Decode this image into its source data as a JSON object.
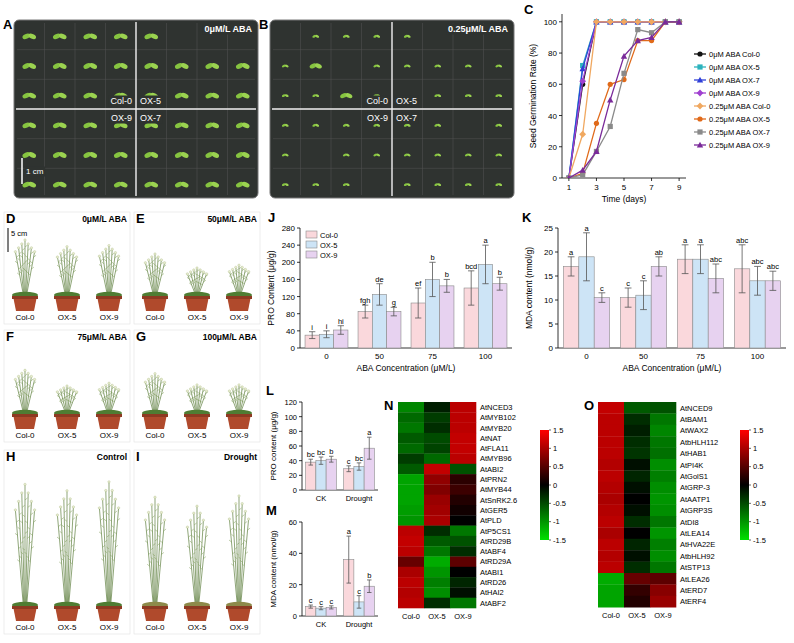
{
  "chart_data": [
    {
      "panel": "C",
      "type": "line",
      "x_label": "Time (days)",
      "y_label": "Seed Germination Rate (%)",
      "x": [
        1,
        2,
        3,
        4,
        5,
        6,
        7,
        8,
        9
      ],
      "xlim": [
        0.5,
        9.5
      ],
      "ylim": [
        0,
        105
      ],
      "xticks": [
        1,
        3,
        5,
        7,
        9
      ],
      "yticks": [
        0,
        20,
        40,
        60,
        80,
        100
      ],
      "legend": "right",
      "series": [
        {
          "name": "0μM ABA Col-0",
          "color": "#111111",
          "marker": "circle",
          "values": [
            0,
            60,
            100,
            100,
            100,
            100,
            100,
            100,
            100
          ]
        },
        {
          "name": "0μM ABA OX-5",
          "color": "#2cb3bd",
          "marker": "square",
          "values": [
            0,
            72,
            100,
            100,
            100,
            100,
            100,
            100,
            100
          ]
        },
        {
          "name": "0μM ABA OX-7",
          "color": "#3040d8",
          "marker": "triangle",
          "values": [
            0,
            70,
            100,
            100,
            100,
            100,
            100,
            100,
            100
          ]
        },
        {
          "name": "0μM ABA OX-9",
          "color": "#a040d0",
          "marker": "diamond",
          "values": [
            0,
            62,
            100,
            100,
            100,
            100,
            100,
            100,
            100
          ]
        },
        {
          "name": "0.25μM ABA Col-0",
          "color": "#f0a860",
          "marker": "diamond",
          "values": [
            0,
            28,
            100,
            100,
            100,
            100,
            100,
            100,
            100
          ]
        },
        {
          "name": "0.25μM ABA OX-5",
          "color": "#e06a1a",
          "marker": "circle",
          "values": [
            0,
            3,
            35,
            60,
            63,
            88,
            88,
            100,
            100
          ]
        },
        {
          "name": "0.25μM ABA OX-7",
          "color": "#8a8a8a",
          "marker": "square",
          "values": [
            0,
            2,
            17,
            33,
            67,
            95,
            93,
            100,
            100
          ]
        },
        {
          "name": "0.25μM ABA OX-9",
          "color": "#7a2a9a",
          "marker": "triangle",
          "values": [
            0,
            5,
            17,
            50,
            78,
            88,
            90,
            100,
            100
          ]
        }
      ]
    },
    {
      "panel": "J",
      "type": "bar",
      "x_label": "ABA Concentration (μM/L)",
      "y_label": "PRO Content (μg/g)",
      "categories": [
        "0",
        "50",
        "75",
        "100"
      ],
      "ylim": [
        0,
        280
      ],
      "yticks": [
        0,
        40,
        80,
        120,
        160,
        200,
        240,
        280
      ],
      "legend": "top-left",
      "series": [
        {
          "name": "Col-0",
          "color": "#fad8dc",
          "values": [
            30,
            85,
            105,
            140
          ],
          "errors": [
            8,
            15,
            35,
            40
          ],
          "letters": [
            "i",
            "fgh",
            "ef",
            "bcd"
          ]
        },
        {
          "name": "OX-5",
          "color": "#cde4f6",
          "values": [
            32,
            125,
            160,
            195
          ],
          "errors": [
            8,
            25,
            40,
            45
          ],
          "letters": [
            "i",
            "de",
            "b",
            "a"
          ]
        },
        {
          "name": "OX-9",
          "color": "#e7d2f0",
          "values": [
            42,
            85,
            145,
            150
          ],
          "errors": [
            10,
            10,
            15,
            15
          ],
          "letters": [
            "hi",
            "g",
            "b",
            "b"
          ]
        }
      ]
    },
    {
      "panel": "K",
      "type": "bar",
      "x_label": "ABA Concentration (μM/L)",
      "y_label": "MDA content (nmol/g)",
      "categories": [
        "0",
        "50",
        "75",
        "100"
      ],
      "ylim": [
        0,
        25
      ],
      "yticks": [
        0,
        5,
        10,
        15,
        20,
        25
      ],
      "series": [
        {
          "name": "Col-0",
          "color": "#fad8dc",
          "values": [
            17,
            10.5,
            18.5,
            16.5
          ],
          "errors": [
            2,
            2,
            3,
            5
          ],
          "letters": [
            "a",
            "c",
            "a",
            "abc"
          ]
        },
        {
          "name": "OX-5",
          "color": "#cde4f6",
          "values": [
            19,
            11,
            18.5,
            14
          ],
          "errors": [
            5,
            3,
            3,
            3
          ],
          "letters": [
            "a",
            "c",
            "a",
            "abc"
          ]
        },
        {
          "name": "OX-9",
          "color": "#e7d2f0",
          "values": [
            10.5,
            17,
            14.5,
            14
          ],
          "errors": [
            1,
            2,
            3,
            2
          ],
          "letters": [
            "c",
            "ab",
            "abc",
            "abc"
          ]
        }
      ]
    },
    {
      "panel": "L",
      "type": "bar",
      "y_label": "PRO content (μg/g)",
      "categories": [
        "CK",
        "Drought"
      ],
      "ylim": [
        0,
        120
      ],
      "yticks": [
        0,
        20,
        40,
        60,
        80,
        100,
        120
      ],
      "series": [
        {
          "name": "Col-0",
          "color": "#fad8dc",
          "values": [
            38,
            29
          ],
          "errors": [
            4,
            4
          ],
          "letters": [
            "bc",
            "c"
          ]
        },
        {
          "name": "OX-5",
          "color": "#cde4f6",
          "values": [
            40,
            32
          ],
          "errors": [
            5,
            5
          ],
          "letters": [
            "bc",
            "bc"
          ]
        },
        {
          "name": "OX-9",
          "color": "#e7d2f0",
          "values": [
            42,
            57
          ],
          "errors": [
            4,
            15
          ],
          "letters": [
            "b",
            "a"
          ]
        }
      ]
    },
    {
      "panel": "M",
      "type": "bar",
      "y_label": "MDA content (nmol/g)",
      "categories": [
        "CK",
        "Drought"
      ],
      "ylim": [
        0,
        60
      ],
      "yticks": [
        0,
        20,
        40,
        60
      ],
      "series": [
        {
          "name": "Col-0",
          "color": "#fad8dc",
          "values": [
            6,
            36
          ],
          "errors": [
            1,
            15
          ],
          "letters": [
            "c",
            "a"
          ]
        },
        {
          "name": "OX-5",
          "color": "#cde4f6",
          "values": [
            5,
            9
          ],
          "errors": [
            1,
            4
          ],
          "letters": [
            "c",
            "c"
          ]
        },
        {
          "name": "OX-9",
          "color": "#e7d2f0",
          "values": [
            5.5,
            19
          ],
          "errors": [
            1,
            4
          ],
          "letters": [
            "c",
            "b"
          ]
        }
      ]
    },
    {
      "panel": "N",
      "type": "heatmap",
      "columns": [
        "Col-0",
        "OX-5",
        "OX-9"
      ],
      "rows": [
        "AtNCED3",
        "AtMYB102",
        "AtMYB20",
        "AtNAT",
        "AtFLA11",
        "AtMYB96",
        "AtABI2",
        "AtPRN2",
        "AtMYB44",
        "AtSnRK2.6",
        "AtGER5",
        "AtPLD",
        "AtP5CS1",
        "AtRD29B",
        "AtABF4",
        "AtRD29A",
        "AtABI1",
        "AtRD26",
        "AtHAI2",
        "AtABF2"
      ],
      "cells": [
        [
          -0.9,
          -0.2,
          1.1
        ],
        [
          -0.7,
          -0.4,
          1.1
        ],
        [
          -0.8,
          -0.3,
          1.1
        ],
        [
          -0.6,
          -0.5,
          1.15
        ],
        [
          -0.7,
          -0.45,
          1.15
        ],
        [
          -0.4,
          -0.7,
          1.1
        ],
        [
          -0.6,
          1.15,
          -0.55
        ],
        [
          -1.1,
          0.85,
          0.25
        ],
        [
          -1.1,
          0.75,
          0.35
        ],
        [
          -1.1,
          0.9,
          0.2
        ],
        [
          -1.05,
          0.95,
          0.1
        ],
        [
          -1.0,
          1.0,
          0.0
        ],
        [
          1.1,
          -0.3,
          -0.8
        ],
        [
          1.15,
          -0.6,
          -0.55
        ],
        [
          1.1,
          -0.8,
          -0.3
        ],
        [
          0.6,
          -1.15,
          0.55
        ],
        [
          1.0,
          -1.0,
          0.0
        ],
        [
          1.1,
          -0.85,
          -0.25
        ],
        [
          1.05,
          -0.95,
          -0.1
        ],
        [
          1.1,
          -0.3,
          -0.8
        ]
      ],
      "colorbar": {
        "range": [
          -1.5,
          1.5
        ],
        "ticks": [
          1.5,
          1,
          0.5,
          0,
          -0.5,
          -1,
          -1.5
        ],
        "colors": [
          "#00e000",
          "#000000",
          "#ff0000"
        ]
      }
    },
    {
      "panel": "O",
      "type": "heatmap",
      "columns": [
        "Col-0",
        "OX-5",
        "OX-9"
      ],
      "rows": [
        "AtNCED9",
        "AtBAM1",
        "AtWAX2",
        "AtbHLH112",
        "AtHAB1",
        "AtPI4K",
        "AtGolS1",
        "AtGRP-3",
        "AtAATP1",
        "AtGRP3S",
        "AtDI8",
        "AtLEA14",
        "AtHVA22E",
        "AtbHLH92",
        "AtSTP13",
        "AtLEA26",
        "AtERD7",
        "AtERF4"
      ],
      "cells": [
        [
          1.15,
          -0.6,
          -0.55
        ],
        [
          1.1,
          -0.3,
          -0.8
        ],
        [
          1.1,
          -0.2,
          -0.9
        ],
        [
          1.1,
          -0.3,
          -0.8
        ],
        [
          1.1,
          -0.35,
          -0.75
        ],
        [
          1.05,
          -0.1,
          -0.95
        ],
        [
          1.1,
          -0.25,
          -0.85
        ],
        [
          1.05,
          -0.1,
          -0.95
        ],
        [
          1.0,
          0.0,
          -1.0
        ],
        [
          1.05,
          -0.1,
          -0.95
        ],
        [
          1.1,
          -0.3,
          -0.8
        ],
        [
          1.0,
          0.0,
          -1.0
        ],
        [
          1.1,
          -0.25,
          -0.85
        ],
        [
          1.05,
          -0.1,
          -0.95
        ],
        [
          1.1,
          -0.3,
          -0.8
        ],
        [
          -1.15,
          0.6,
          0.55
        ],
        [
          -1.1,
          0.3,
          0.8
        ],
        [
          -1.1,
          0.2,
          0.9
        ]
      ],
      "colorbar": {
        "range": [
          -1.5,
          1.5
        ],
        "ticks": [
          1.5,
          1,
          0.5,
          0,
          -0.5,
          -1,
          -1.5
        ],
        "colors": [
          "#00e000",
          "#000000",
          "#ff0000"
        ]
      }
    }
  ],
  "photos": [
    {
      "panel": "A",
      "type": "plate",
      "title": "0μM/L ABA",
      "labels": [
        "Col-0",
        "OX-5",
        "OX-9",
        "OX-7"
      ],
      "scale": "1 cm"
    },
    {
      "panel": "B",
      "type": "plate",
      "title": "0.25μM/L ABA",
      "labels": [
        "Col-0",
        "OX-5",
        "OX-9",
        "OX-7"
      ]
    },
    {
      "panel": "D",
      "type": "plants",
      "title": "0μM/L ABA",
      "labels": [
        "Col-0",
        "OX-5",
        "OX-9"
      ],
      "scale": "5 cm"
    },
    {
      "panel": "E",
      "type": "plants",
      "title": "50μM/L ABA",
      "labels": [
        "Col-0",
        "OX-5",
        "OX-9"
      ]
    },
    {
      "panel": "F",
      "type": "plants",
      "title": "75μM/L ABA",
      "labels": [
        "Col-0",
        "OX-5",
        "OX-9"
      ]
    },
    {
      "panel": "G",
      "type": "plants",
      "title": "100μM/L ABA",
      "labels": [
        "Col-0",
        "OX-5",
        "OX-9"
      ]
    },
    {
      "panel": "H",
      "type": "plants",
      "title": "Control",
      "labels": [
        "Col-0",
        "OX-5",
        "OX-9"
      ]
    },
    {
      "panel": "I",
      "type": "plants",
      "title": "Drought",
      "labels": [
        "Col-0",
        "OX-5",
        "OX-9"
      ]
    }
  ]
}
